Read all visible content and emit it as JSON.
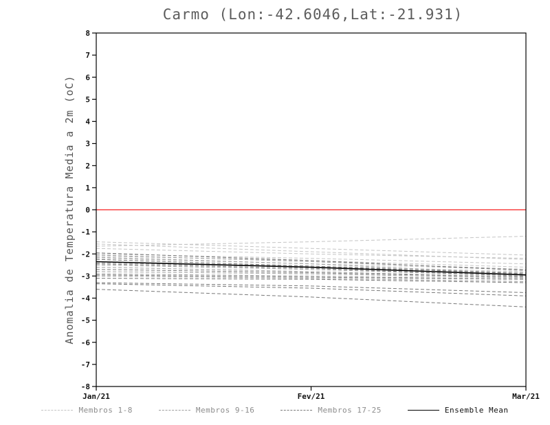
{
  "chart_data": {
    "type": "line",
    "title": "Carmo (Lon:-42.6046,Lat:-21.931)",
    "ylabel": "Anomalia de Temperatura Media a 2m (oC)",
    "xlabel": "",
    "categories": [
      "Jan/21",
      "Fev/21",
      "Mar/21"
    ],
    "ylim": [
      -8,
      8
    ],
    "yticks": [
      -8,
      -7,
      -6,
      -5,
      -4,
      -3,
      -2,
      -1,
      0,
      1,
      2,
      3,
      4,
      5,
      6,
      7,
      8
    ],
    "grid": false,
    "zero_line_color": "#f94040",
    "groups": [
      {
        "name": "Membros 1-8",
        "color": "#c4c4c4",
        "style": "dashed",
        "series": [
          [
            -1.65,
            -1.45,
            -1.2
          ],
          [
            -1.45,
            -1.75,
            -2.05
          ],
          [
            -1.55,
            -1.9,
            -2.25
          ],
          [
            -1.75,
            -2.0,
            -2.2
          ],
          [
            -2.0,
            -2.2,
            -2.45
          ],
          [
            -2.1,
            -2.3,
            -2.6
          ],
          [
            -2.2,
            -2.45,
            -2.7
          ],
          [
            -2.35,
            -2.55,
            -2.8
          ]
        ]
      },
      {
        "name": "Membros 9-16",
        "color": "#9e9e9e",
        "style": "dashed",
        "series": [
          [
            -2.05,
            -2.35,
            -2.7
          ],
          [
            -2.15,
            -2.45,
            -2.9
          ],
          [
            -2.4,
            -2.6,
            -2.85
          ],
          [
            -2.5,
            -2.7,
            -3.0
          ],
          [
            -2.6,
            -2.8,
            -3.05
          ],
          [
            -2.8,
            -2.9,
            -3.1
          ],
          [
            -2.9,
            -3.0,
            -3.15
          ],
          [
            -3.0,
            -3.1,
            -3.25
          ]
        ]
      },
      {
        "name": "Membros 17-25",
        "color": "#777777",
        "style": "dashed",
        "series": [
          [
            -2.25,
            -2.55,
            -2.9
          ],
          [
            -2.45,
            -2.65,
            -3.0
          ],
          [
            -2.7,
            -2.85,
            -3.05
          ],
          [
            -2.95,
            -3.05,
            -3.15
          ],
          [
            -3.1,
            -3.15,
            -3.3
          ],
          [
            -3.3,
            -3.45,
            -3.75
          ],
          [
            -3.35,
            -3.55,
            -3.9
          ],
          [
            -3.6,
            -3.95,
            -4.4
          ],
          [
            -1.95,
            -2.3,
            -2.75
          ]
        ]
      }
    ],
    "ensemble_mean": {
      "name": "Ensemble Mean",
      "color": "#000000",
      "style": "solid",
      "values": [
        -2.35,
        -2.6,
        -2.95
      ]
    },
    "legend_position": "bottom"
  }
}
